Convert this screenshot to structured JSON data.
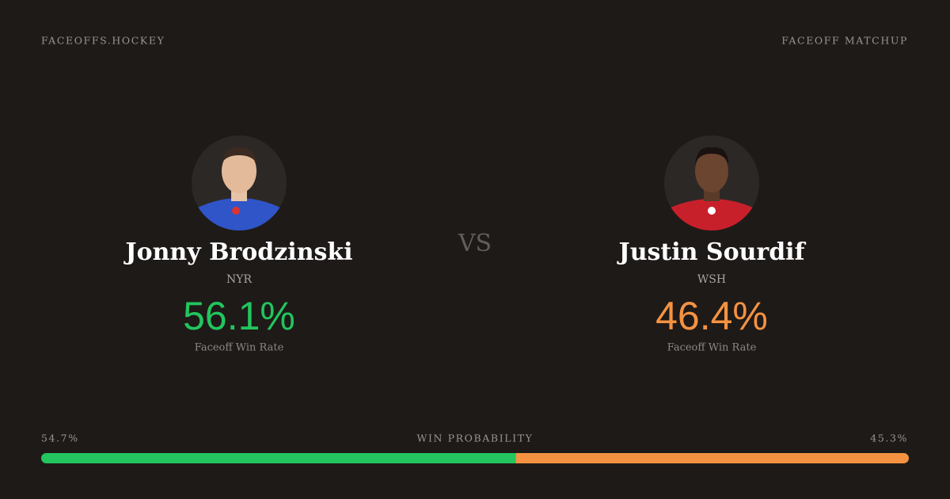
{
  "header": {
    "brand": "FACEOFFS.HOCKEY",
    "title": "FACEOFF MATCHUP"
  },
  "players": [
    {
      "name": "Jonny Brodzinski",
      "team": "NYR",
      "win_rate": "56.1%",
      "stat_label": "Faceoff Win Rate",
      "color": "#22c55e"
    },
    {
      "name": "Justin Sourdif",
      "team": "WSH",
      "win_rate": "46.4%",
      "stat_label": "Faceoff Win Rate",
      "color": "#f59241"
    }
  ],
  "versus": "VS",
  "win_probability": {
    "title": "WIN PROBABILITY",
    "left": {
      "value": 54.7,
      "label": "54.7%"
    },
    "right": {
      "value": 45.3,
      "label": "45.3%"
    }
  }
}
